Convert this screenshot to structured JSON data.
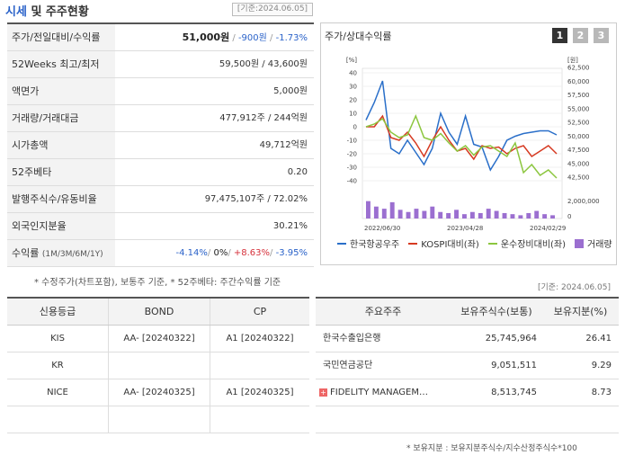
{
  "header": {
    "title_accent": "시세",
    "title_rest": " 및 주주현황",
    "date": "[기준:2024.06.05]"
  },
  "quote_table": [
    {
      "label": "주가/전일대비/수익률",
      "price": "51,000원",
      "change": "-900원",
      "rate": "-1.73%"
    },
    {
      "label": "52Weeks 최고/최저",
      "value": "59,500원 / 43,600원"
    },
    {
      "label": "액면가",
      "value": "5,000원"
    },
    {
      "label": "거래량/거래대금",
      "value": "477,912주 / 244억원"
    },
    {
      "label": "시가총액",
      "value": "49,712억원"
    },
    {
      "label": "52주베타",
      "value": "0.20"
    },
    {
      "label": "발행주식수/유동비율",
      "value": "97,475,107주 / 72.02%"
    },
    {
      "label": "외국인지분율",
      "value": "30.21%"
    },
    {
      "label": "수익률",
      "label_sub": "(1M/3M/6M/1Y)",
      "r1": "-4.14%",
      "r2": "0%",
      "r3": "+8.63%",
      "r4": "-3.95%"
    }
  ],
  "note1": "* 수정주가(차트포함), 보통주 기준, * 52주베타: 주간수익률 기준",
  "chart_panel": {
    "title": "주가/상대수익률",
    "tabs": [
      "1",
      "2",
      "3"
    ],
    "active_tab": 0,
    "legend": [
      {
        "label": "한국항공우주",
        "color": "#2a6fc9",
        "kind": "line"
      },
      {
        "label": "KOSPI대비(좌)",
        "color": "#d63a22",
        "kind": "line"
      },
      {
        "label": "운수장비대비(좌)",
        "color": "#8cc63f",
        "kind": "line"
      },
      {
        "label": "거래량",
        "color": "#9b6fd0",
        "kind": "bar"
      }
    ]
  },
  "chart_data": {
    "type": "line",
    "left_axis_unit": "[%]",
    "right_axis_unit": "[원]",
    "left_ticks": [
      "40",
      "30",
      "20",
      "10",
      "0",
      "-10",
      "-20",
      "-30",
      "-40"
    ],
    "right_ticks": [
      "62,500",
      "60,000",
      "57,500",
      "55,000",
      "52,500",
      "50,000",
      "47,500",
      "45,000",
      "42,500"
    ],
    "volume_ticks": [
      "2,000,000",
      "0"
    ],
    "x_labels": [
      "2022/06/30",
      "2023/04/28",
      "2024/02/29"
    ],
    "left_range": [
      -40,
      40
    ],
    "right_range": [
      42500,
      62500
    ],
    "volume_range": [
      0,
      2400000
    ],
    "series": [
      {
        "name": "한국항공우주",
        "axis": "left",
        "values": [
          5,
          18,
          34,
          -16,
          -20,
          -10,
          -19,
          -28,
          -16,
          10,
          -4,
          -13,
          8,
          -13,
          -15,
          -32,
          -22,
          -10,
          -7,
          -5,
          -4,
          -3,
          -3,
          -6
        ]
      },
      {
        "name": "KOSPI대비(좌)",
        "axis": "left",
        "values": [
          0,
          0,
          8,
          -8,
          -10,
          -4,
          -12,
          -22,
          -10,
          0,
          -10,
          -18,
          -16,
          -24,
          -14,
          -16,
          -15,
          -20,
          -16,
          -14,
          -22,
          -18,
          -14,
          -20
        ]
      },
      {
        "name": "운수장비대비(좌)",
        "axis": "left",
        "values": [
          0,
          2,
          6,
          -4,
          -8,
          -6,
          8,
          -8,
          -10,
          -5,
          -12,
          -18,
          -14,
          -21,
          -15,
          -14,
          -18,
          -22,
          -12,
          -34,
          -28,
          -36,
          -32,
          -38
        ]
      }
    ],
    "volume": [
      1600000,
      1100000,
      900000,
      1500000,
      800000,
      600000,
      900000,
      700000,
      1100000,
      600000,
      500000,
      800000,
      400000,
      600000,
      500000,
      900000,
      700000,
      500000,
      400000,
      300000,
      500000,
      700000,
      400000,
      300000
    ]
  },
  "date2": "[기준: 2024.06.05]",
  "credit_table": {
    "headers": [
      "신용등급",
      "BOND",
      "CP"
    ],
    "rows": [
      [
        "KIS",
        "AA-  [20240322]",
        "A1  [20240322]"
      ],
      [
        "KR",
        "",
        ""
      ],
      [
        "NICE",
        "AA-  [20240325]",
        "A1  [20240325]"
      ],
      [
        "",
        "",
        ""
      ]
    ]
  },
  "holder_table": {
    "headers": [
      "주요주주",
      "보유주식수(보통)",
      "보유지분(%)"
    ],
    "rows": [
      {
        "name": "한국수출입은행",
        "shares": "25,745,964",
        "pct": "26.41",
        "plus": false
      },
      {
        "name": "국민연금공단",
        "shares": "9,051,511",
        "pct": "9.29",
        "plus": false
      },
      {
        "name": "FIDELITY MANAGEM…",
        "shares": "8,513,745",
        "pct": "8.73",
        "plus": true
      },
      {
        "name": "",
        "shares": "",
        "pct": "",
        "plus": false
      }
    ]
  },
  "note2": "* 보유지분 : 보유지분주식수/지수산정주식수*100"
}
